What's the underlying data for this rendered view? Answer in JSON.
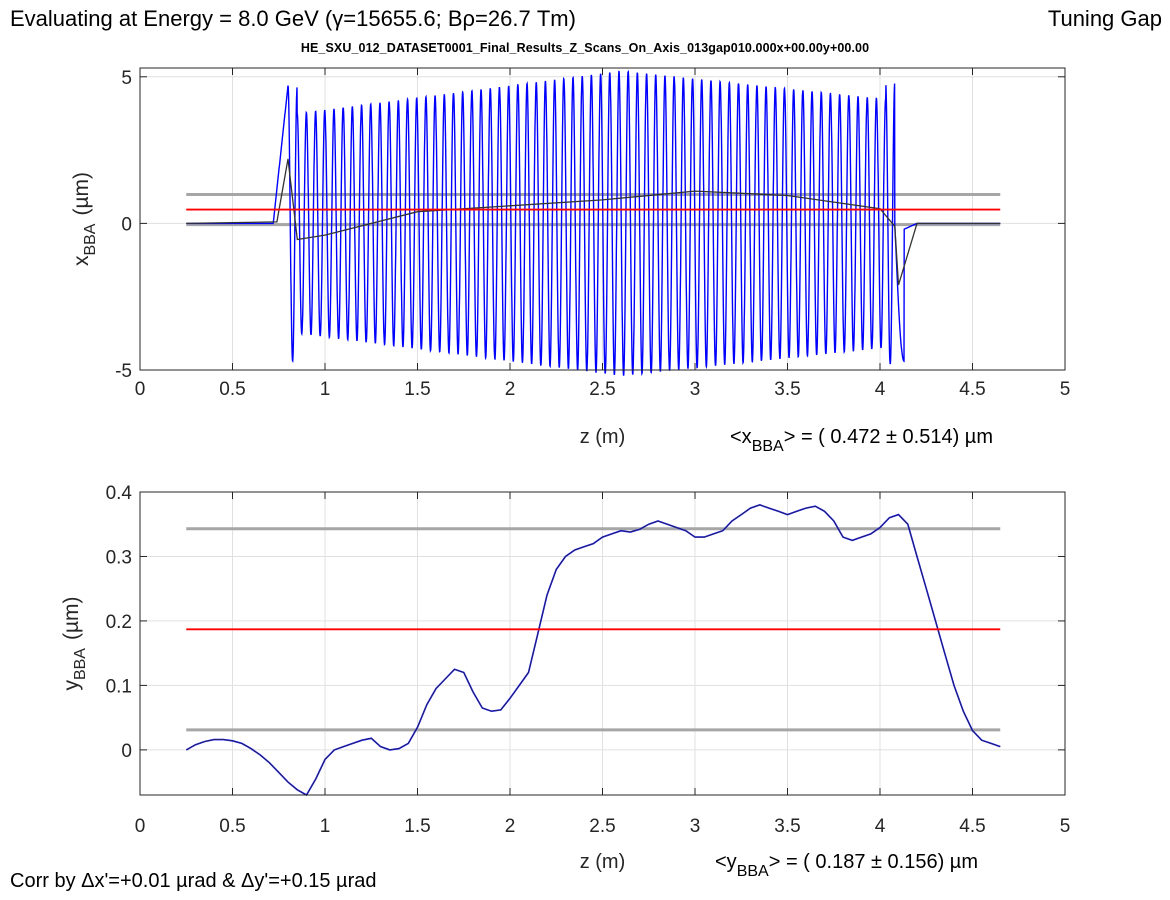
{
  "header": {
    "title_prefix": "Evaluating at Energy =  8.0 GeV (",
    "gamma_symbol": "γ",
    "title_middle": "=15655.6; B",
    "rho_symbol": "ρ",
    "title_suffix": "=26.7 Tm)",
    "mode_label": "Tuning Gap",
    "dataset_label": "HE_SXU_012_DATASET0001_Final_Results_Z_Scans_On_Axis_013gap010.000x+00.00y+00.00"
  },
  "footer": {
    "prefix": "Corr by ",
    "delta": "Δ",
    "x_part": "x'=+0.01 µrad & ",
    "y_part": "y'=+0.15 µrad"
  },
  "colors": {
    "signal": "#0000ff",
    "average": "#ff0000",
    "band": "#a6a6a6",
    "smoothed": "#333333",
    "grid": "#e0e0e0"
  },
  "chart_data": [
    {
      "type": "line",
      "xlabel": "z (m)",
      "ylabel_main": "x",
      "ylabel_sub": "BBA",
      "ylabel_unit": "(µm)",
      "xlim": [
        0,
        5
      ],
      "ylim": [
        -5,
        5.3
      ],
      "xticks": [
        "0",
        "0.5",
        "1",
        "1.5",
        "2",
        "2.5",
        "3",
        "3.5",
        "4",
        "4.5",
        "5"
      ],
      "yticks": [
        "-5",
        "0",
        "5"
      ],
      "ytick_values": [
        -5,
        0,
        5
      ],
      "stat": {
        "pre": "<x",
        "sub": "BBA",
        "post": "> = (  0.472 ± 0.514) µm"
      },
      "mean": 0.472,
      "band": [
        -0.042,
        0.986
      ],
      "z_range": [
        0.25,
        4.65
      ],
      "oscillation": {
        "z_start": 0.8,
        "z_end": 4.08,
        "periods": 66,
        "amp_start": 3.7,
        "amp_mid": 5.2,
        "amp_end": 4.2,
        "first_peak": 4.7,
        "last_peak": 4.8,
        "min_value": -4.7
      },
      "trend": [
        [
          0.25,
          0.0
        ],
        [
          0.74,
          0.05
        ],
        [
          0.8,
          2.2
        ],
        [
          0.85,
          -0.55
        ],
        [
          1.0,
          -0.4
        ],
        [
          1.5,
          0.4
        ],
        [
          2.0,
          0.6
        ],
        [
          2.5,
          0.8
        ],
        [
          3.0,
          1.1
        ],
        [
          3.5,
          0.95
        ],
        [
          4.0,
          0.5
        ],
        [
          4.08,
          -0.1
        ],
        [
          4.1,
          -2.1
        ],
        [
          4.2,
          0.0
        ],
        [
          4.65,
          0.0
        ]
      ]
    },
    {
      "type": "line",
      "xlabel": "z (m)",
      "ylabel_main": "y",
      "ylabel_sub": "BBA",
      "ylabel_unit": "(µm)",
      "xlim": [
        0,
        5
      ],
      "ylim": [
        -0.07,
        0.4
      ],
      "xticks": [
        "0",
        "0.5",
        "1",
        "1.5",
        "2",
        "2.5",
        "3",
        "3.5",
        "4",
        "4.5",
        "5"
      ],
      "yticks": [
        "0",
        "0.1",
        "0.2",
        "0.3",
        "0.4"
      ],
      "ytick_values": [
        0,
        0.1,
        0.2,
        0.3,
        0.4
      ],
      "stat": {
        "pre": "<y",
        "sub": "BBA",
        "post": ">   = (  0.187 ± 0.156) µm"
      },
      "mean": 0.187,
      "band": [
        0.031,
        0.343
      ],
      "x": [
        0.25,
        0.3,
        0.35,
        0.4,
        0.45,
        0.5,
        0.55,
        0.6,
        0.65,
        0.7,
        0.75,
        0.8,
        0.85,
        0.9,
        0.95,
        1.0,
        1.05,
        1.1,
        1.15,
        1.2,
        1.25,
        1.3,
        1.35,
        1.4,
        1.45,
        1.5,
        1.55,
        1.6,
        1.65,
        1.7,
        1.75,
        1.8,
        1.85,
        1.9,
        1.95,
        2.0,
        2.05,
        2.1,
        2.15,
        2.2,
        2.25,
        2.3,
        2.35,
        2.4,
        2.45,
        2.5,
        2.55,
        2.6,
        2.65,
        2.7,
        2.75,
        2.8,
        2.85,
        2.9,
        2.95,
        3.0,
        3.05,
        3.1,
        3.15,
        3.2,
        3.25,
        3.3,
        3.35,
        3.4,
        3.45,
        3.5,
        3.55,
        3.6,
        3.65,
        3.7,
        3.75,
        3.8,
        3.85,
        3.9,
        3.95,
        4.0,
        4.05,
        4.1,
        4.15,
        4.2,
        4.25,
        4.3,
        4.35,
        4.4,
        4.45,
        4.5,
        4.55,
        4.6,
        4.65
      ],
      "y": [
        0.0,
        0.008,
        0.013,
        0.016,
        0.016,
        0.014,
        0.01,
        0.002,
        -0.008,
        -0.02,
        -0.035,
        -0.05,
        -0.062,
        -0.07,
        -0.045,
        -0.015,
        0.0,
        0.005,
        0.01,
        0.015,
        0.018,
        0.005,
        0.0,
        0.002,
        0.01,
        0.035,
        0.07,
        0.095,
        0.11,
        0.125,
        0.12,
        0.09,
        0.065,
        0.06,
        0.062,
        0.08,
        0.1,
        0.12,
        0.18,
        0.24,
        0.28,
        0.3,
        0.31,
        0.315,
        0.32,
        0.33,
        0.335,
        0.34,
        0.338,
        0.342,
        0.35,
        0.355,
        0.35,
        0.345,
        0.34,
        0.33,
        0.33,
        0.335,
        0.34,
        0.355,
        0.365,
        0.375,
        0.38,
        0.375,
        0.37,
        0.365,
        0.37,
        0.375,
        0.378,
        0.37,
        0.355,
        0.33,
        0.325,
        0.33,
        0.335,
        0.345,
        0.36,
        0.365,
        0.35,
        0.3,
        0.25,
        0.2,
        0.15,
        0.1,
        0.06,
        0.03,
        0.015,
        0.01,
        0.005
      ]
    }
  ]
}
